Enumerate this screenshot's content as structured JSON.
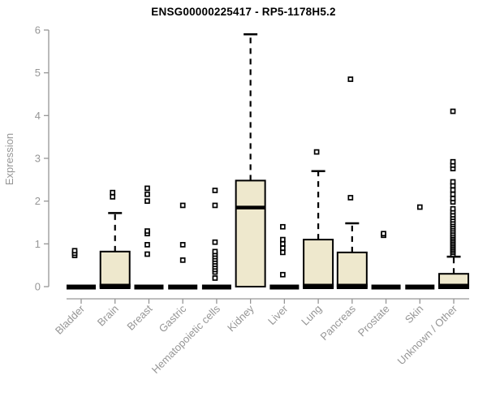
{
  "page": {
    "background": "#ffffff"
  },
  "chart_data": {
    "type": "boxplot",
    "title": "ENSG00000225417 - RP5-1178H5.2",
    "ylabel": "Expression",
    "xlabel": "",
    "ylim": [
      0,
      6
    ],
    "yticks": [
      0,
      1,
      2,
      3,
      4,
      5,
      6
    ],
    "grid": false,
    "legend": "none",
    "colors": {
      "box_fill": "#EEE8CD",
      "box_stroke": "#000000",
      "median": "#000000",
      "whisker": "#000000",
      "outlier_stroke": "#000000",
      "outlier_fill": "#ffffff",
      "axis": "#969696",
      "tick_label": "#969696",
      "title": "#000000"
    },
    "categories": [
      {
        "label": "Bladder",
        "q1": 0,
        "median": 0,
        "q3": 0,
        "whisker_low": 0,
        "whisker_high": 0,
        "outliers": [
          0.73,
          0.78,
          0.84
        ],
        "outlier_dx": -8
      },
      {
        "label": "Brain",
        "q1": 0,
        "median": 0,
        "q3": 0.82,
        "whisker_low": 0,
        "whisker_high": 1.72,
        "outliers": [
          2.1,
          2.2
        ],
        "outlier_dx": -3
      },
      {
        "label": "Breast",
        "q1": 0,
        "median": 0,
        "q3": 0,
        "whisker_low": 0,
        "whisker_high": 0,
        "outliers": [
          0.76,
          0.98,
          1.24,
          1.3,
          2.0,
          2.16,
          2.3
        ],
        "outlier_dx": -2
      },
      {
        "label": "Gastric",
        "q1": 0,
        "median": 0,
        "q3": 0,
        "whisker_low": 0,
        "whisker_high": 0,
        "outliers": [
          0.62,
          0.98,
          1.9
        ],
        "outlier_dx": 0
      },
      {
        "label": "Hematopoietic cells",
        "q1": 0,
        "median": 0,
        "q3": 0,
        "whisker_low": 0,
        "whisker_high": 0,
        "outliers": [
          0.2,
          0.34,
          0.4,
          0.46,
          0.52,
          0.58,
          0.64,
          0.7,
          0.76,
          0.82,
          1.04,
          1.9,
          2.25
        ],
        "outlier_dx": -2
      },
      {
        "label": "Kidney",
        "q1": 0,
        "median": 1.85,
        "q3": 2.48,
        "whisker_low": 0,
        "whisker_high": 5.9,
        "outliers": [],
        "outlier_dx": 0
      },
      {
        "label": "Liver",
        "q1": 0,
        "median": 0,
        "q3": 0,
        "whisker_low": 0,
        "whisker_high": 0,
        "outliers": [
          0.28,
          0.8,
          0.9,
          1.0,
          1.1,
          1.4
        ],
        "outlier_dx": -2
      },
      {
        "label": "Lung",
        "q1": 0,
        "median": 0,
        "q3": 1.1,
        "whisker_low": 0,
        "whisker_high": 2.7,
        "outliers": [
          3.15
        ],
        "outlier_dx": -2
      },
      {
        "label": "Pancreas",
        "q1": 0,
        "median": 0,
        "q3": 0.8,
        "whisker_low": 0,
        "whisker_high": 1.48,
        "outliers": [
          2.08,
          4.85
        ],
        "outlier_dx": -2
      },
      {
        "label": "Prostate",
        "q1": 0,
        "median": 0,
        "q3": 0,
        "whisker_low": 0,
        "whisker_high": 0,
        "outliers": [
          1.2,
          1.24
        ],
        "outlier_dx": -3
      },
      {
        "label": "Skin",
        "q1": 0,
        "median": 0,
        "q3": 0,
        "whisker_low": 0,
        "whisker_high": 0,
        "outliers": [
          1.86
        ],
        "outlier_dx": 0
      },
      {
        "label": "Unknown / Other",
        "q1": 0,
        "median": 0,
        "q3": 0.3,
        "whisker_low": 0,
        "whisker_high": 0.7,
        "outliers": [
          0.75,
          0.8,
          0.84,
          0.88,
          0.92,
          0.96,
          1.0,
          1.04,
          1.08,
          1.12,
          1.16,
          1.2,
          1.25,
          1.3,
          1.35,
          1.4,
          1.45,
          1.5,
          1.56,
          1.62,
          1.68,
          1.75,
          1.82,
          1.98,
          2.06,
          2.16,
          2.26,
          2.36,
          2.45,
          2.76,
          2.84,
          2.92,
          4.1
        ],
        "outlier_dx": -1
      }
    ]
  }
}
